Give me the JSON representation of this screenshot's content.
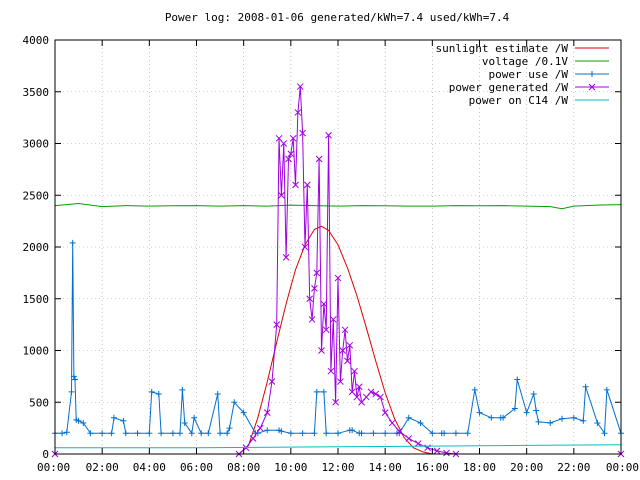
{
  "chart_data": {
    "type": "line",
    "title": "Power log: 2008-01-06 generated/kWh=7.4 used/kWh=7.4",
    "xlabel": "",
    "ylabel": "",
    "ylim": [
      0,
      4000
    ],
    "yticks": [
      0,
      500,
      1000,
      1500,
      2000,
      2500,
      3000,
      3500,
      4000
    ],
    "xlim_hours": [
      0,
      24
    ],
    "xticks": [
      "00:00",
      "02:00",
      "04:00",
      "06:00",
      "08:00",
      "10:00",
      "12:00",
      "14:00",
      "16:00",
      "18:00",
      "20:00",
      "22:00",
      "00:00"
    ],
    "grid": true,
    "legend_position": "top-right",
    "series": [
      {
        "name": "sunlight estimate /W",
        "color": "#e00000",
        "marker": "none",
        "x": [
          0,
          7.8,
          8.2,
          8.6,
          9.0,
          9.4,
          9.8,
          10.2,
          10.6,
          11.0,
          11.3,
          11.6,
          12.0,
          12.4,
          12.8,
          13.2,
          13.6,
          14.0,
          14.4,
          14.8,
          15.2,
          15.6,
          16.0,
          16.4,
          24
        ],
        "values": [
          0,
          0,
          80,
          350,
          700,
          1080,
          1450,
          1780,
          2020,
          2170,
          2200,
          2160,
          2020,
          1800,
          1530,
          1220,
          900,
          590,
          340,
          160,
          60,
          20,
          0,
          0,
          0
        ]
      },
      {
        "name": "voltage /0.1V",
        "color": "#00a000",
        "marker": "none",
        "x": [
          0,
          1,
          2,
          3,
          4,
          5,
          6,
          7,
          8,
          9,
          10,
          11,
          12,
          13,
          14,
          15,
          16,
          17,
          18,
          19,
          20,
          21,
          21.5,
          22,
          23,
          24
        ],
        "values": [
          2400,
          2420,
          2390,
          2400,
          2395,
          2398,
          2400,
          2395,
          2400,
          2395,
          2405,
          2400,
          2395,
          2400,
          2398,
          2395,
          2395,
          2400,
          2398,
          2400,
          2395,
          2390,
          2370,
          2395,
          2405,
          2410
        ]
      },
      {
        "name": "power use /W",
        "color": "#0070d0",
        "marker": "plus",
        "x": [
          0,
          0.3,
          0.5,
          0.7,
          0.75,
          0.8,
          0.85,
          0.9,
          1.0,
          1.2,
          1.5,
          2.0,
          2.4,
          2.5,
          2.9,
          3.0,
          3.5,
          4.0,
          4.1,
          4.4,
          4.5,
          5.0,
          5.3,
          5.4,
          5.5,
          5.8,
          5.9,
          6.2,
          6.5,
          6.9,
          7.0,
          7.3,
          7.4,
          7.6,
          8.0,
          8.5,
          8.6,
          9.0,
          9.5,
          9.6,
          10.0,
          10.5,
          11.0,
          11.1,
          11.4,
          11.5,
          12.0,
          12.5,
          12.6,
          12.9,
          13.0,
          13.5,
          14.0,
          14.5,
          14.6,
          15.0,
          15.5,
          16.0,
          16.4,
          16.5,
          17.0,
          17.5,
          17.8,
          18.0,
          18.5,
          18.9,
          19.0,
          19.5,
          19.6,
          20.0,
          20.3,
          20.4,
          20.5,
          21.0,
          21.5,
          22.0,
          22.4,
          22.5,
          23.0,
          23.3,
          23.4,
          24.0
        ],
        "values": [
          200,
          200,
          210,
          600,
          2040,
          750,
          720,
          330,
          320,
          300,
          200,
          200,
          200,
          350,
          320,
          200,
          200,
          200,
          600,
          580,
          200,
          200,
          200,
          620,
          300,
          200,
          350,
          200,
          200,
          580,
          200,
          200,
          250,
          500,
          400,
          200,
          200,
          230,
          230,
          220,
          200,
          200,
          200,
          600,
          600,
          200,
          200,
          230,
          230,
          200,
          200,
          200,
          200,
          200,
          200,
          350,
          300,
          200,
          200,
          200,
          200,
          200,
          620,
          400,
          350,
          350,
          350,
          440,
          720,
          400,
          580,
          420,
          310,
          300,
          340,
          350,
          320,
          650,
          300,
          200,
          620,
          200
        ]
      },
      {
        "name": "power generated /W",
        "color": "#a000e0",
        "marker": "cross",
        "x": [
          0,
          7.8,
          8.1,
          8.4,
          8.7,
          9.0,
          9.2,
          9.4,
          9.5,
          9.6,
          9.7,
          9.8,
          9.9,
          10.0,
          10.1,
          10.2,
          10.3,
          10.4,
          10.5,
          10.6,
          10.7,
          10.8,
          10.9,
          11.0,
          11.1,
          11.2,
          11.3,
          11.4,
          11.5,
          11.6,
          11.7,
          11.8,
          11.9,
          12.0,
          12.1,
          12.2,
          12.3,
          12.4,
          12.5,
          12.6,
          12.7,
          12.8,
          12.9,
          13.0,
          13.2,
          13.4,
          13.6,
          13.8,
          14.0,
          14.3,
          14.6,
          15.0,
          15.4,
          15.8,
          16.2,
          16.6,
          17.0,
          24
        ],
        "values": [
          0,
          0,
          60,
          150,
          250,
          400,
          700,
          1250,
          3050,
          2500,
          3000,
          1900,
          2850,
          2900,
          3050,
          2600,
          3300,
          3550,
          3100,
          2000,
          2600,
          1500,
          1300,
          1600,
          1750,
          2850,
          1000,
          1450,
          1200,
          3080,
          800,
          1300,
          500,
          1700,
          700,
          1000,
          1200,
          900,
          1050,
          600,
          800,
          550,
          650,
          500,
          550,
          600,
          580,
          550,
          400,
          300,
          220,
          150,
          100,
          60,
          30,
          10,
          0,
          0
        ]
      },
      {
        "name": "power on C14 /W",
        "color": "#00c0c0",
        "marker": "none",
        "x": [
          0,
          6,
          12,
          18,
          24
        ],
        "values": [
          60,
          60,
          70,
          80,
          90
        ]
      }
    ]
  }
}
